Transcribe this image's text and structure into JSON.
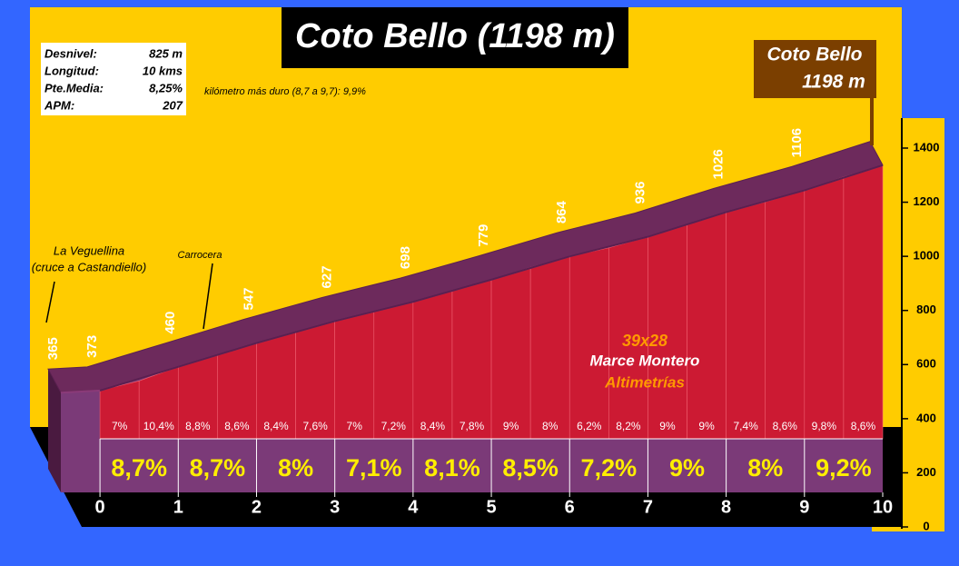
{
  "chart_data": {
    "type": "profile",
    "title": "Coto Bello (1198 m)",
    "summit_label": [
      "Coto Bello",
      "1198 m"
    ],
    "stats": [
      {
        "label": "Desnivel:",
        "value": "825 m"
      },
      {
        "label": "Longitud:",
        "value": "10 kms"
      },
      {
        "label": "Pte.Media:",
        "value": "8,25%"
      },
      {
        "label": "APM:",
        "value": "207"
      }
    ],
    "note": "kilómetro más duro (8,7 a 9,7):  9,9%",
    "annotations": [
      "La Veguellina",
      "(cruce a Castandiello)",
      "Carrocera"
    ],
    "credits": [
      "39x28",
      "Marce Montero",
      "Altimetrías"
    ],
    "x": [
      -0.5,
      0,
      1,
      2,
      3,
      4,
      5,
      6,
      7,
      8,
      9,
      10
    ],
    "values": [
      365,
      373,
      460,
      547,
      627,
      698,
      779,
      864,
      936,
      1026,
      1106,
      1198
    ],
    "km_grades": {
      "values": [
        8.7,
        8.7,
        8,
        7.1,
        8.1,
        8.5,
        7.2,
        9,
        8,
        9.2
      ],
      "value_labels": [
        "8,7%",
        "8,7%",
        "8%",
        "7,1%",
        "8,1%",
        "8,5%",
        "7,2%",
        "9%",
        "8%",
        "9,2%"
      ]
    },
    "half_km_grades": {
      "values": [
        7,
        10.4,
        8.8,
        8.6,
        8.4,
        7.6,
        7,
        7.2,
        8.4,
        7.8,
        9,
        8,
        6.2,
        8.2,
        9,
        9,
        7.4,
        8.6,
        9.8,
        8.6
      ],
      "value_labels": [
        "7%",
        "10,4%",
        "8,8%",
        "8,6%",
        "8,4%",
        "7,6%",
        "7%",
        "7,2%",
        "8,4%",
        "7,8%",
        "9%",
        "8%",
        "6,2%",
        "8,2%",
        "9%",
        "9%",
        "7,4%",
        "8,6%",
        "9,8%",
        "8,6%"
      ]
    },
    "xlim": [
      -0.5,
      10
    ],
    "xticks": [
      0,
      1,
      2,
      3,
      4,
      5,
      6,
      7,
      8,
      9,
      10
    ],
    "ylim": [
      0,
      1400
    ],
    "yticks": [
      0,
      200,
      400,
      600,
      800,
      1000,
      1200,
      1400
    ]
  }
}
